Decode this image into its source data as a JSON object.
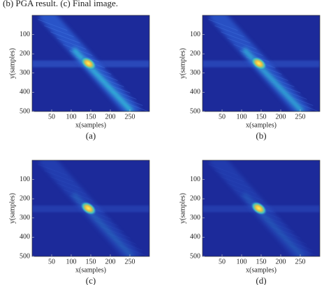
{
  "caption_top": "(b) PGA result. (c) Final image.",
  "figures": [
    {
      "caption": "(a)",
      "x_label": "x(samples)",
      "y_label": "y(samples)",
      "xlim": [
        0,
        300
      ],
      "ylim": [
        0,
        500
      ],
      "xticks": [
        50,
        100,
        150,
        200,
        250
      ],
      "yticks": [
        100,
        200,
        300,
        400,
        500
      ]
    },
    {
      "caption": "(b)",
      "x_label": "x(samples)",
      "y_label": "y(samples)",
      "xlim": [
        0,
        300
      ],
      "ylim": [
        0,
        500
      ],
      "xticks": [
        50,
        100,
        150,
        200,
        250
      ],
      "yticks": [
        100,
        200,
        300,
        400,
        500
      ]
    },
    {
      "caption": "(c)",
      "x_label": "x(samples)",
      "y_label": "y(samples)",
      "xlim": [
        0,
        300
      ],
      "ylim": [
        0,
        500
      ],
      "xticks": [
        50,
        100,
        150,
        200,
        250
      ],
      "yticks": [
        100,
        200,
        300,
        400,
        500
      ]
    },
    {
      "caption": "(d)",
      "x_label": "x(samples)",
      "y_label": "y(samples)",
      "xlim": [
        0,
        300
      ],
      "ylim": [
        0,
        500
      ],
      "xticks": [
        50,
        100,
        150,
        200,
        250
      ],
      "yticks": [
        100,
        200,
        300,
        400,
        500
      ]
    }
  ]
}
